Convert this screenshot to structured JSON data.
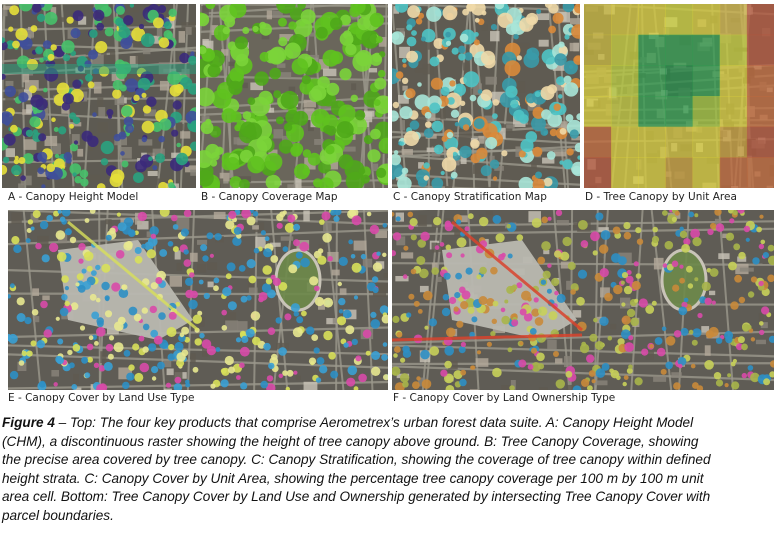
{
  "panels": {
    "a": {
      "label": "A - Canopy Height Model"
    },
    "b": {
      "label": "B - Canopy Coverage Map"
    },
    "c": {
      "label": "C - Canopy Stratification Map"
    },
    "d": {
      "label": "D - Tree Canopy by Unit Area"
    },
    "e": {
      "label": "E - Canopy Cover by Land Use Type"
    },
    "f": {
      "label": "F - Canopy Cover by Land Ownership Type"
    }
  },
  "caption": {
    "figure_ref": "Figure 4",
    "lines": [
      " – Top: The four key products that comprise Aerometrex’s urban forest data suite. A: Canopy Height Model",
      "(CHM), a discontinuous raster showing the height of tree canopy above ground. B: Tree Canopy Coverage, showing",
      "the precise area covered by tree canopy. C: Canopy Stratification, showing the coverage of tree canopy within defined",
      "height strata. C: Canopy Cover by Unit Area, showing the percentage tree canopy coverage per 100 m by 100 m unit",
      "area cell. Bottom: Tree Canopy Cover by Land Use and Ownership generated by intersecting Tree Canopy Cover with",
      "parcel boundaries."
    ]
  },
  "colors": {
    "imagery_base": "#6f6a5e",
    "chm_low": "#3b2a7a",
    "chm_mid": "#2aa27f",
    "chm_high": "#e6df3a",
    "coverage_green": "#5fc21f",
    "strat_cyan": "#4fc3c4",
    "strat_orange": "#d9893a",
    "unit_green": "#2f9e4f",
    "unit_yellow": "#d9cf3a",
    "unit_red": "#b5543a",
    "landuse_blue": "#2d8fc4",
    "landuse_yellow": "#d8e05a",
    "landuse_pink": "#d84aa8",
    "ownership_red": "#d8432e",
    "ownership_olive": "#a8b54a"
  }
}
